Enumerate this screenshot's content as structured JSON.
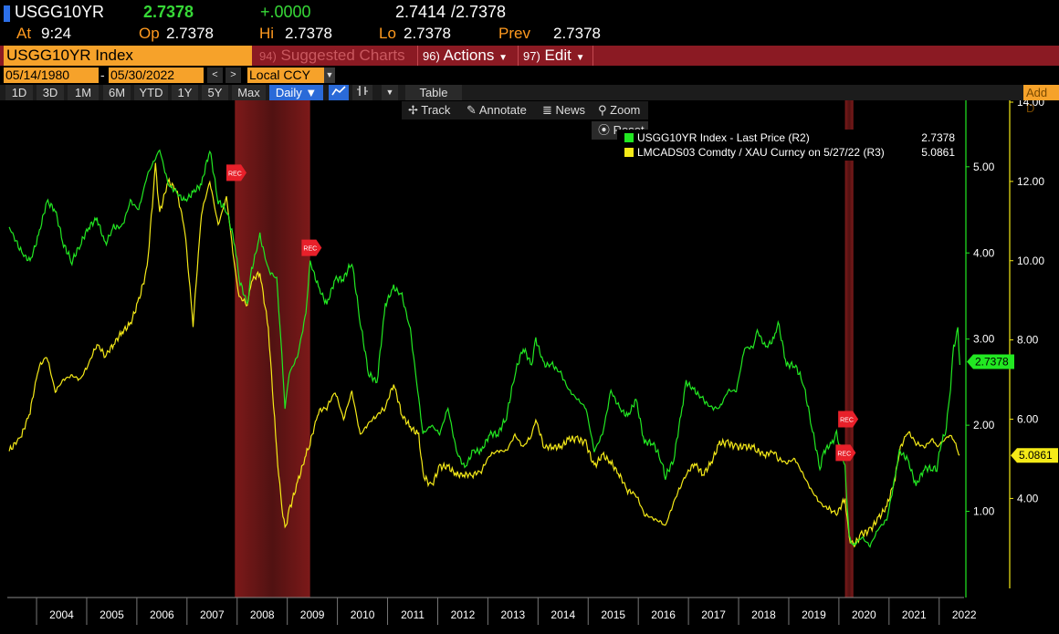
{
  "quote": {
    "ticker": "USGG10YR",
    "last": "2.7378",
    "change": "+.0000",
    "bid": "2.7414",
    "ask": "/2.7378",
    "at_label": "At",
    "time": "9:24",
    "op_label": "Op",
    "op": "2.7378",
    "hi_label": "Hi",
    "hi": "2.7378",
    "lo_label": "Lo",
    "lo": "2.7378",
    "prev_label": "Prev",
    "prev": "2.7378"
  },
  "titlebar": {
    "security": "USGG10YR Index",
    "suggested_num": "94)",
    "suggested": "Suggested Charts",
    "actions_num": "96)",
    "actions": "Actions",
    "edit_num": "97)",
    "edit": "Edit"
  },
  "dates": {
    "start": "05/14/1980",
    "sep": "-",
    "end": "05/30/2022",
    "currency": "Local CCY"
  },
  "toolbar": {
    "ranges": [
      "1D",
      "3D",
      "1M",
      "6M",
      "YTD",
      "1Y",
      "5Y",
      "Max"
    ],
    "frequency": "Daily ▼",
    "table": "Table",
    "add": "Add D"
  },
  "chart_menu": {
    "track": "Track",
    "annotate": "Annotate",
    "news": "News",
    "zoom": "Zoom",
    "reset": "Reset"
  },
  "legend": {
    "series1": "USGG10YR Index - Last Price (R2)",
    "series1_value": "2.7378",
    "series2": "LMCADS03 Comdty / XAU Curncy on 5/27/22 (R3)",
    "series2_value": "5.0861"
  },
  "colors": {
    "series1": "#22e822",
    "series2": "#f5ea18",
    "recession": "#5a1414",
    "rec_marker": "#e8202a"
  },
  "chart_data": {
    "type": "line",
    "x_axis": {
      "type": "date",
      "range": [
        "2003-06-01",
        "2022-06-30"
      ],
      "tick_labels": [
        "2004",
        "2005",
        "2006",
        "2007",
        "2008",
        "2009",
        "2010",
        "2011",
        "2012",
        "2013",
        "2014",
        "2015",
        "2016",
        "2017",
        "2018",
        "2019",
        "2020",
        "2021",
        "2022"
      ]
    },
    "y_axis_r2": {
      "range": [
        0,
        5.75
      ],
      "tick_labels": [
        "1.00",
        "2.00",
        "3.00",
        "4.00",
        "5.00"
      ]
    },
    "y_axis_r3": {
      "range": [
        1.5,
        14.0
      ],
      "tick_labels": [
        "4.00",
        "6.00",
        "8.00",
        "10.00",
        "12.00",
        "14.00"
      ]
    },
    "recessions": [
      {
        "label": "REC",
        "start": "2007-12",
        "end": "2009-06"
      },
      {
        "label": "REC",
        "start": "2020-02",
        "end": "2020-04"
      }
    ],
    "series": [
      {
        "name": "USGG10YR Index - Last Price (R2)",
        "axis": "r2",
        "last_value_label": "2.7378",
        "points": [
          [
            "2003-06",
            4.3
          ],
          [
            "2003-09",
            4.0
          ],
          [
            "2003-11",
            3.9
          ],
          [
            "2004-01",
            4.2
          ],
          [
            "2004-03",
            4.6
          ],
          [
            "2004-05",
            4.5
          ],
          [
            "2004-07",
            4.1
          ],
          [
            "2004-09",
            3.9
          ],
          [
            "2004-11",
            4.1
          ],
          [
            "2005-01",
            4.3
          ],
          [
            "2005-03",
            4.4
          ],
          [
            "2005-05",
            4.1
          ],
          [
            "2005-07",
            4.3
          ],
          [
            "2005-09",
            4.3
          ],
          [
            "2005-11",
            4.6
          ],
          [
            "2006-01",
            4.5
          ],
          [
            "2006-03",
            4.9
          ],
          [
            "2006-05",
            5.1
          ],
          [
            "2006-06",
            5.2
          ],
          [
            "2006-08",
            4.8
          ],
          [
            "2006-10",
            4.7
          ],
          [
            "2006-12",
            4.6
          ],
          [
            "2007-02",
            4.7
          ],
          [
            "2007-04",
            4.8
          ],
          [
            "2007-06",
            5.2
          ],
          [
            "2007-08",
            4.6
          ],
          [
            "2007-10",
            4.5
          ],
          [
            "2007-12",
            4.1
          ],
          [
            "2008-01",
            3.7
          ],
          [
            "2008-03",
            3.4
          ],
          [
            "2008-04",
            3.8
          ],
          [
            "2008-06",
            4.2
          ],
          [
            "2008-08",
            3.8
          ],
          [
            "2008-10",
            3.7
          ],
          [
            "2008-11",
            3.0
          ],
          [
            "2008-12",
            2.2
          ],
          [
            "2009-01",
            2.6
          ],
          [
            "2009-03",
            2.8
          ],
          [
            "2009-05",
            3.3
          ],
          [
            "2009-06",
            3.9
          ],
          [
            "2009-08",
            3.6
          ],
          [
            "2009-10",
            3.4
          ],
          [
            "2009-12",
            3.7
          ],
          [
            "2010-02",
            3.7
          ],
          [
            "2010-04",
            3.9
          ],
          [
            "2010-06",
            3.2
          ],
          [
            "2010-08",
            2.6
          ],
          [
            "2010-10",
            2.5
          ],
          [
            "2010-12",
            3.4
          ],
          [
            "2011-02",
            3.6
          ],
          [
            "2011-04",
            3.5
          ],
          [
            "2011-06",
            3.1
          ],
          [
            "2011-08",
            2.3
          ],
          [
            "2011-09",
            1.9
          ],
          [
            "2011-11",
            2.0
          ],
          [
            "2012-01",
            1.9
          ],
          [
            "2012-03",
            2.2
          ],
          [
            "2012-05",
            1.7
          ],
          [
            "2012-07",
            1.5
          ],
          [
            "2012-09",
            1.7
          ],
          [
            "2012-11",
            1.7
          ],
          [
            "2013-01",
            1.9
          ],
          [
            "2013-03",
            1.9
          ],
          [
            "2013-05",
            2.1
          ],
          [
            "2013-07",
            2.6
          ],
          [
            "2013-09",
            2.9
          ],
          [
            "2013-11",
            2.7
          ],
          [
            "2013-12",
            3.0
          ],
          [
            "2014-02",
            2.7
          ],
          [
            "2014-04",
            2.7
          ],
          [
            "2014-06",
            2.6
          ],
          [
            "2014-08",
            2.4
          ],
          [
            "2014-10",
            2.3
          ],
          [
            "2014-12",
            2.2
          ],
          [
            "2015-02",
            1.7
          ],
          [
            "2015-04",
            1.9
          ],
          [
            "2015-06",
            2.4
          ],
          [
            "2015-08",
            2.2
          ],
          [
            "2015-10",
            2.1
          ],
          [
            "2015-12",
            2.3
          ],
          [
            "2016-02",
            1.8
          ],
          [
            "2016-04",
            1.8
          ],
          [
            "2016-06",
            1.6
          ],
          [
            "2016-07",
            1.4
          ],
          [
            "2016-09",
            1.6
          ],
          [
            "2016-11",
            2.2
          ],
          [
            "2016-12",
            2.5
          ],
          [
            "2017-02",
            2.4
          ],
          [
            "2017-04",
            2.3
          ],
          [
            "2017-06",
            2.2
          ],
          [
            "2017-08",
            2.2
          ],
          [
            "2017-10",
            2.4
          ],
          [
            "2017-12",
            2.4
          ],
          [
            "2018-02",
            2.9
          ],
          [
            "2018-04",
            2.9
          ],
          [
            "2018-05",
            3.1
          ],
          [
            "2018-07",
            2.9
          ],
          [
            "2018-09",
            3.0
          ],
          [
            "2018-10",
            3.2
          ],
          [
            "2018-12",
            2.7
          ],
          [
            "2019-02",
            2.7
          ],
          [
            "2019-04",
            2.5
          ],
          [
            "2019-06",
            2.0
          ],
          [
            "2019-08",
            1.5
          ],
          [
            "2019-09",
            1.7
          ],
          [
            "2019-11",
            1.8
          ],
          [
            "2019-12",
            1.9
          ],
          [
            "2020-02",
            1.5
          ],
          [
            "2020-03",
            0.7
          ],
          [
            "2020-04",
            0.6
          ],
          [
            "2020-06",
            0.7
          ],
          [
            "2020-08",
            0.6
          ],
          [
            "2020-10",
            0.8
          ],
          [
            "2020-12",
            0.9
          ],
          [
            "2021-02",
            1.4
          ],
          [
            "2021-03",
            1.7
          ],
          [
            "2021-05",
            1.6
          ],
          [
            "2021-07",
            1.3
          ],
          [
            "2021-09",
            1.5
          ],
          [
            "2021-11",
            1.5
          ],
          [
            "2021-12",
            1.5
          ],
          [
            "2022-01",
            1.8
          ],
          [
            "2022-02",
            1.9
          ],
          [
            "2022-03",
            2.3
          ],
          [
            "2022-04",
            2.9
          ],
          [
            "2022-05",
            3.1
          ],
          [
            "2022-05-30",
            2.7
          ]
        ]
      },
      {
        "name": "LMCADS03 Comdty / XAU Curncy on 5/27/22 (R3)",
        "axis": "r3",
        "last_value_label": "5.0861",
        "points": [
          [
            "2003-06",
            5.2
          ],
          [
            "2003-09",
            5.6
          ],
          [
            "2003-11",
            6.2
          ],
          [
            "2004-01",
            7.3
          ],
          [
            "2004-03",
            7.6
          ],
          [
            "2004-05",
            6.7
          ],
          [
            "2004-07",
            7.0
          ],
          [
            "2004-09",
            7.1
          ],
          [
            "2004-11",
            7.0
          ],
          [
            "2005-01",
            7.4
          ],
          [
            "2005-03",
            7.9
          ],
          [
            "2005-05",
            7.6
          ],
          [
            "2005-07",
            7.9
          ],
          [
            "2005-09",
            8.2
          ],
          [
            "2005-11",
            8.4
          ],
          [
            "2006-01",
            9.0
          ],
          [
            "2006-03",
            9.8
          ],
          [
            "2006-05",
            12.4
          ],
          [
            "2006-06",
            11.2
          ],
          [
            "2006-08",
            12.0
          ],
          [
            "2006-10",
            11.8
          ],
          [
            "2006-12",
            10.8
          ],
          [
            "2007-02",
            8.4
          ],
          [
            "2007-04",
            11.2
          ],
          [
            "2007-06",
            12.0
          ],
          [
            "2007-08",
            10.9
          ],
          [
            "2007-10",
            11.6
          ],
          [
            "2007-12",
            9.8
          ],
          [
            "2008-01",
            9.1
          ],
          [
            "2008-03",
            8.9
          ],
          [
            "2008-04",
            9.5
          ],
          [
            "2008-06",
            9.7
          ],
          [
            "2008-08",
            8.3
          ],
          [
            "2008-10",
            5.2
          ],
          [
            "2008-11",
            4.0
          ],
          [
            "2008-12",
            3.2
          ],
          [
            "2009-01",
            3.7
          ],
          [
            "2009-03",
            4.4
          ],
          [
            "2009-05",
            5.1
          ],
          [
            "2009-06",
            5.4
          ],
          [
            "2009-08",
            6.2
          ],
          [
            "2009-10",
            6.3
          ],
          [
            "2009-12",
            6.7
          ],
          [
            "2010-02",
            6.0
          ],
          [
            "2010-04",
            6.7
          ],
          [
            "2010-06",
            5.6
          ],
          [
            "2010-08",
            5.9
          ],
          [
            "2010-10",
            6.1
          ],
          [
            "2010-12",
            6.3
          ],
          [
            "2011-02",
            6.9
          ],
          [
            "2011-04",
            6.1
          ],
          [
            "2011-06",
            5.8
          ],
          [
            "2011-08",
            5.6
          ],
          [
            "2011-09",
            4.6
          ],
          [
            "2011-11",
            4.3
          ],
          [
            "2012-01",
            4.8
          ],
          [
            "2012-03",
            4.8
          ],
          [
            "2012-05",
            4.6
          ],
          [
            "2012-07",
            4.6
          ],
          [
            "2012-09",
            4.6
          ],
          [
            "2012-11",
            4.7
          ],
          [
            "2013-01",
            5.1
          ],
          [
            "2013-03",
            5.2
          ],
          [
            "2013-05",
            5.2
          ],
          [
            "2013-07",
            5.6
          ],
          [
            "2013-09",
            5.3
          ],
          [
            "2013-11",
            5.6
          ],
          [
            "2013-12",
            6.0
          ],
          [
            "2014-02",
            5.3
          ],
          [
            "2014-04",
            5.3
          ],
          [
            "2014-06",
            5.3
          ],
          [
            "2014-08",
            5.5
          ],
          [
            "2014-10",
            5.5
          ],
          [
            "2014-12",
            5.4
          ],
          [
            "2015-02",
            4.8
          ],
          [
            "2015-04",
            5.1
          ],
          [
            "2015-06",
            4.9
          ],
          [
            "2015-08",
            4.6
          ],
          [
            "2015-10",
            4.2
          ],
          [
            "2015-12",
            4.1
          ],
          [
            "2016-02",
            3.6
          ],
          [
            "2016-04",
            3.5
          ],
          [
            "2016-06",
            3.4
          ],
          [
            "2016-07",
            3.3
          ],
          [
            "2016-09",
            3.9
          ],
          [
            "2016-11",
            4.4
          ],
          [
            "2016-12",
            4.6
          ],
          [
            "2017-02",
            4.9
          ],
          [
            "2017-04",
            4.6
          ],
          [
            "2017-06",
            4.9
          ],
          [
            "2017-08",
            5.4
          ],
          [
            "2017-10",
            5.4
          ],
          [
            "2017-12",
            5.3
          ],
          [
            "2018-02",
            5.3
          ],
          [
            "2018-04",
            5.3
          ],
          [
            "2018-05",
            5.2
          ],
          [
            "2018-07",
            5.1
          ],
          [
            "2018-09",
            5.2
          ],
          [
            "2018-10",
            5.0
          ],
          [
            "2018-12",
            4.9
          ],
          [
            "2019-02",
            5.0
          ],
          [
            "2019-04",
            4.6
          ],
          [
            "2019-06",
            4.2
          ],
          [
            "2019-08",
            3.9
          ],
          [
            "2019-09",
            3.8
          ],
          [
            "2019-11",
            3.7
          ],
          [
            "2019-12",
            3.6
          ],
          [
            "2020-02",
            4.0
          ],
          [
            "2020-03",
            3.0
          ],
          [
            "2020-04",
            2.8
          ],
          [
            "2020-06",
            3.1
          ],
          [
            "2020-08",
            3.2
          ],
          [
            "2020-10",
            3.5
          ],
          [
            "2020-12",
            3.8
          ],
          [
            "2021-02",
            4.5
          ],
          [
            "2021-03",
            5.2
          ],
          [
            "2021-05",
            5.7
          ],
          [
            "2021-07",
            5.4
          ],
          [
            "2021-09",
            5.3
          ],
          [
            "2021-11",
            5.5
          ],
          [
            "2021-12",
            5.3
          ],
          [
            "2022-01",
            5.4
          ],
          [
            "2022-02",
            5.5
          ],
          [
            "2022-03",
            5.6
          ],
          [
            "2022-04",
            5.5
          ],
          [
            "2022-05",
            5.2
          ],
          [
            "2022-05-27",
            5.0861
          ]
        ]
      }
    ]
  }
}
